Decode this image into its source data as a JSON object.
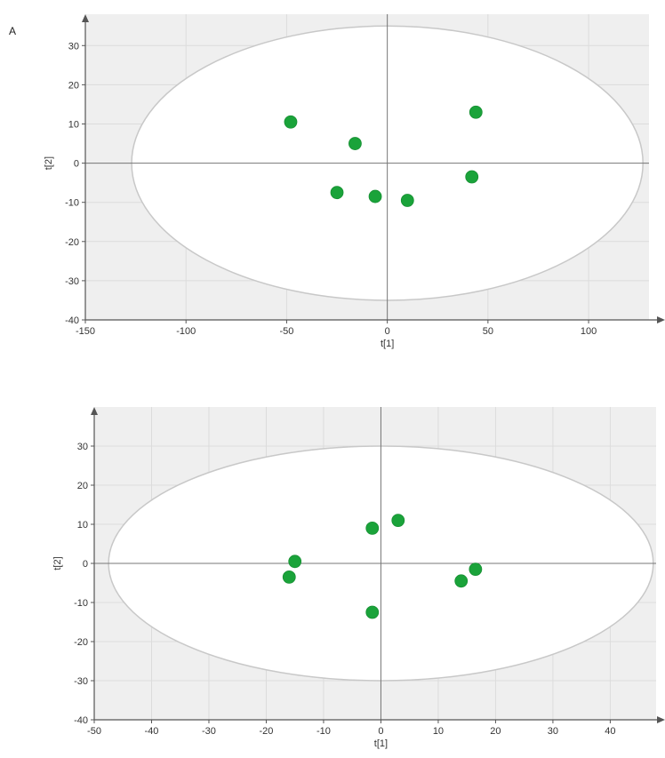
{
  "panel_label": "A",
  "chart_data": [
    {
      "type": "scatter",
      "xlabel": "t[1]",
      "ylabel": "t[2]",
      "xlim": [
        -150,
        130
      ],
      "ylim": [
        -40,
        38
      ],
      "xticks": [
        -150,
        -100,
        -50,
        0,
        50,
        100
      ],
      "yticks": [
        -40,
        -30,
        -20,
        -10,
        0,
        10,
        20,
        30
      ],
      "grid": true,
      "ellipse": {
        "rx": 127,
        "ry": 35
      },
      "colors": {
        "point": "#1aa33a",
        "background": "#efefef",
        "ellipse_fill": "#ffffff",
        "ellipse_stroke": "#c8c8c8",
        "grid": "#dcdcdc",
        "axis": "#555555"
      },
      "points": [
        {
          "x": -48,
          "y": 10.5
        },
        {
          "x": -16,
          "y": 5
        },
        {
          "x": -25,
          "y": -7.5
        },
        {
          "x": -6,
          "y": -8.5
        },
        {
          "x": 10,
          "y": -9.5
        },
        {
          "x": 42,
          "y": -3.5
        },
        {
          "x": 44,
          "y": 13
        }
      ]
    },
    {
      "type": "scatter",
      "xlabel": "t[1]",
      "ylabel": "t[2]",
      "xlim": [
        -50,
        48
      ],
      "ylim": [
        -40,
        40
      ],
      "xticks": [
        -50,
        -40,
        -30,
        -20,
        -10,
        0,
        10,
        20,
        30,
        40
      ],
      "yticks": [
        -40,
        -30,
        -20,
        -10,
        0,
        10,
        20,
        30
      ],
      "grid": true,
      "ellipse": {
        "rx": 47.5,
        "ry": 30
      },
      "colors": {
        "point": "#1aa33a",
        "background": "#efefef",
        "ellipse_fill": "#ffffff",
        "ellipse_stroke": "#c8c8c8",
        "grid": "#dcdcdc",
        "axis": "#555555"
      },
      "points": [
        {
          "x": -15,
          "y": 0.5
        },
        {
          "x": -16,
          "y": -3.5
        },
        {
          "x": -1.5,
          "y": 9
        },
        {
          "x": 3,
          "y": 11
        },
        {
          "x": -1.5,
          "y": -12.5
        },
        {
          "x": 14,
          "y": -4.5
        },
        {
          "x": 16.5,
          "y": -1.5
        }
      ]
    }
  ]
}
